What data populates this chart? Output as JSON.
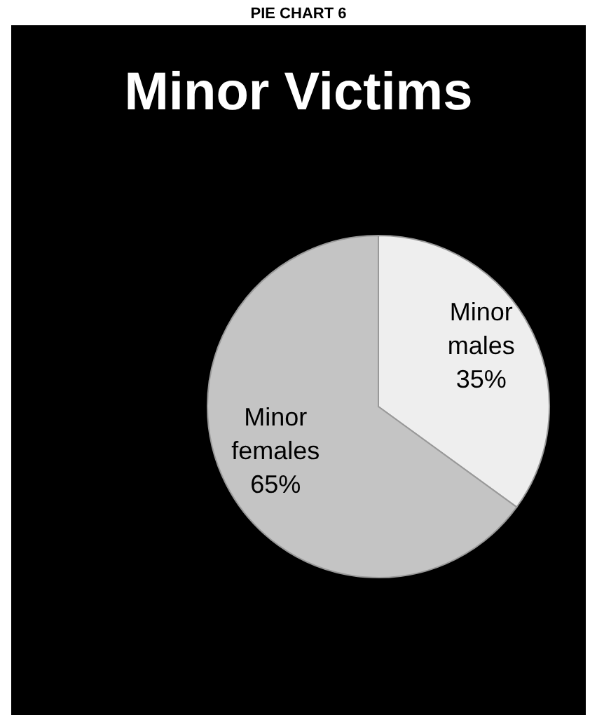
{
  "chart_data": {
    "type": "pie",
    "title": "Minor Victims",
    "annotations": [
      "PIE CHART 6"
    ],
    "categories": [
      "Minor males",
      "Minor females"
    ],
    "values": [
      35,
      65
    ],
    "colors": [
      "#eeeeee",
      "#c4c4c4"
    ],
    "value_labels": [
      "35%",
      "65%"
    ]
  }
}
